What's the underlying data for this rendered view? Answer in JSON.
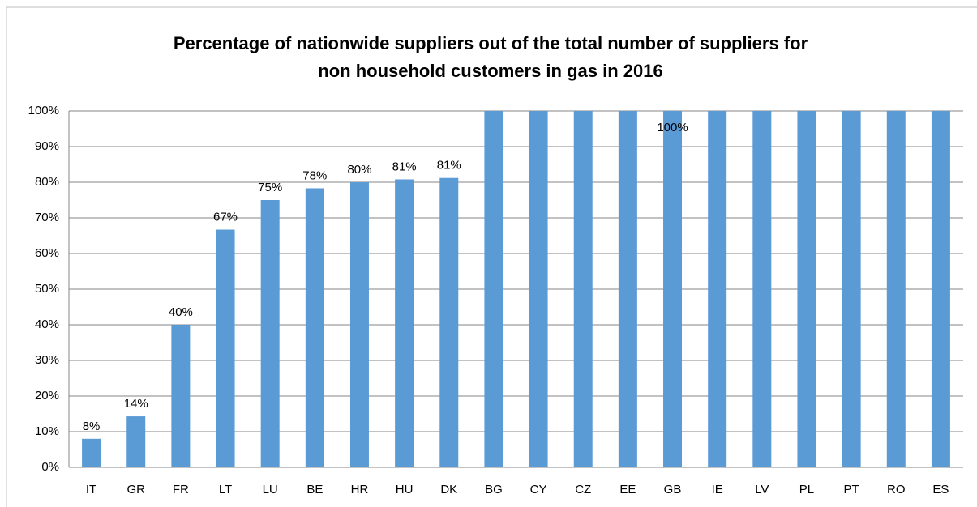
{
  "chart_data": {
    "type": "bar",
    "title_lines": [
      "Percentage of nationwide suppliers out of the total number of suppliers for",
      "non household customers in gas in 2016"
    ],
    "categories": [
      "IT",
      "GR",
      "FR",
      "LT",
      "LU",
      "BE",
      "HR",
      "HU",
      "DK",
      "BG",
      "CY",
      "CZ",
      "EE",
      "GB",
      "IE",
      "LV",
      "PL",
      "PT",
      "RO",
      "ES"
    ],
    "values": [
      8,
      14.3,
      40,
      66.7,
      75,
      78.3,
      80,
      80.8,
      81.2,
      100,
      100,
      100,
      100,
      100,
      100,
      100,
      100,
      100,
      100,
      100
    ],
    "value_labels": [
      "8%",
      "14%",
      "40%",
      "67%",
      "75%",
      "78%",
      "80%",
      "81%",
      "81%",
      null,
      null,
      null,
      null,
      "100%",
      null,
      null,
      null,
      null,
      null,
      null
    ],
    "color": "#5b9bd5",
    "ylim": [
      0,
      100
    ],
    "yticks": [
      {
        "value": 0,
        "label": "0%"
      },
      {
        "value": 10,
        "label": "10%"
      },
      {
        "value": 20,
        "label": "20%"
      },
      {
        "value": 30,
        "label": "30%"
      },
      {
        "value": 40,
        "label": "40%"
      },
      {
        "value": 50,
        "label": "50%"
      },
      {
        "value": 60,
        "label": "60%"
      },
      {
        "value": 70,
        "label": "70%"
      },
      {
        "value": 80,
        "label": "80%"
      },
      {
        "value": 90,
        "label": "90%"
      },
      {
        "value": 100,
        "label": "100%"
      }
    ],
    "grid": true
  }
}
